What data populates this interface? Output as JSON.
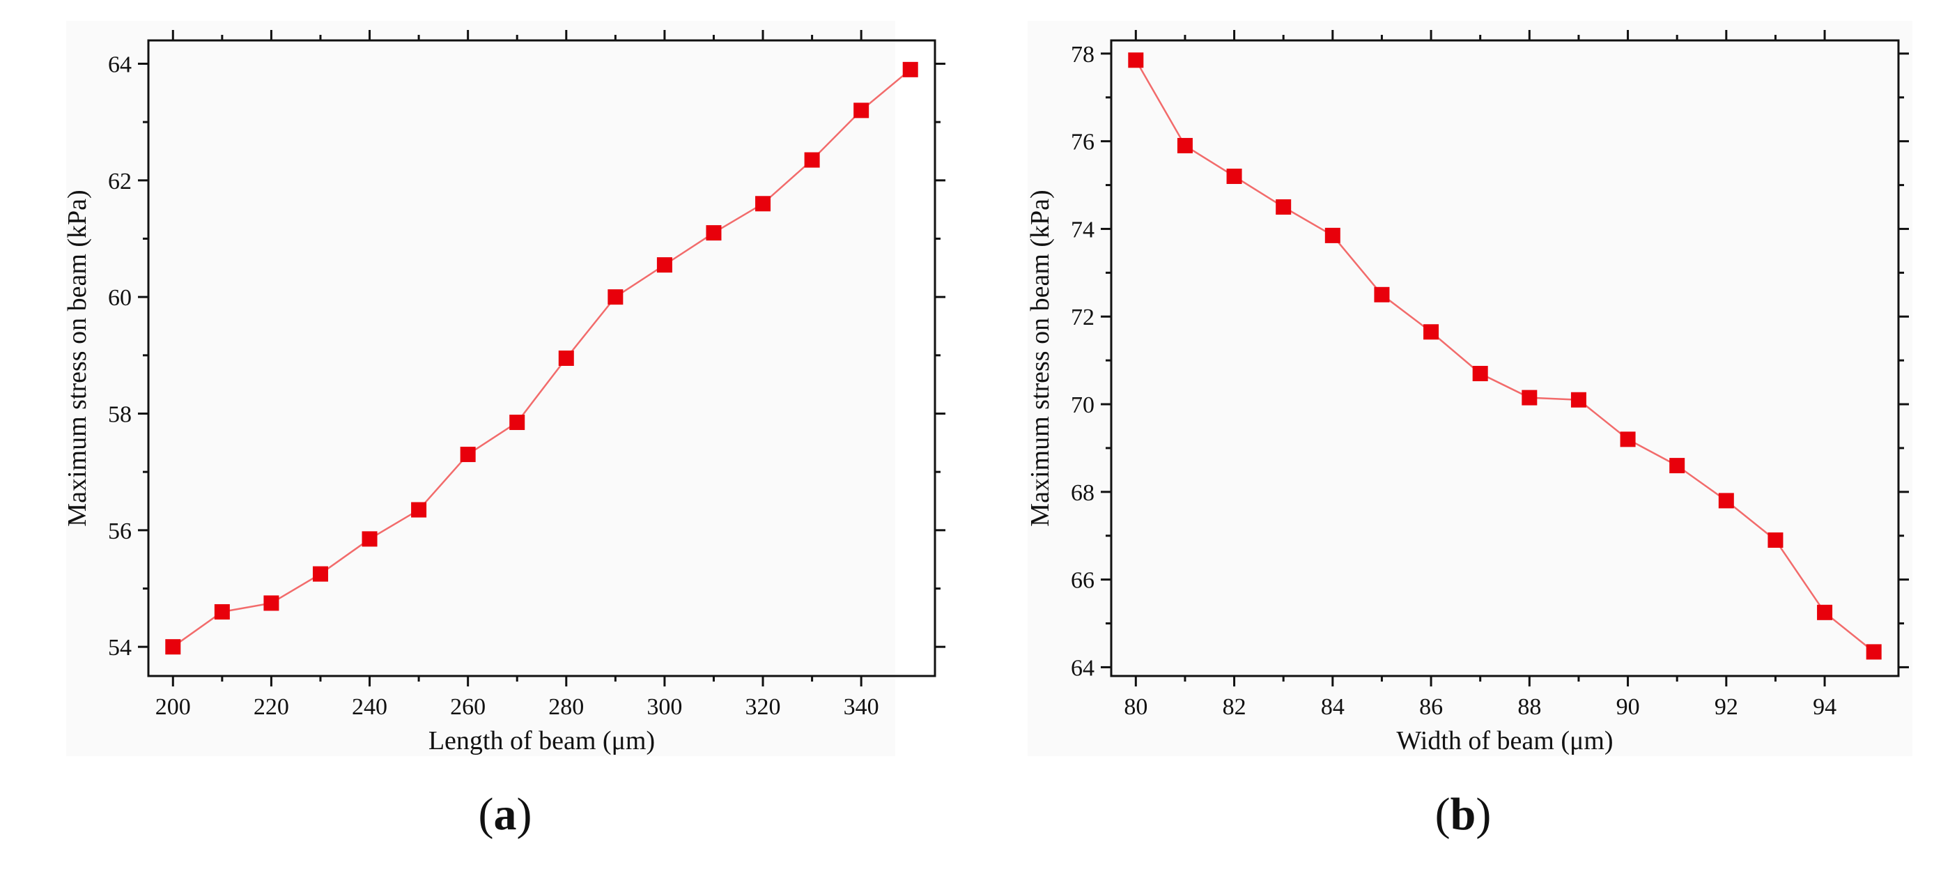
{
  "figure": {
    "series_color": "#e8000b",
    "line_color": "#f26b6b"
  },
  "chart_data": [
    {
      "type": "line",
      "panel_label": "a",
      "xlabel": "Length of beam (μm)",
      "ylabel": "Maximum stress on beam (kPa)",
      "xlim": [
        195,
        355
      ],
      "ylim": [
        53.5,
        64.4
      ],
      "xticks": [
        200,
        220,
        240,
        260,
        280,
        300,
        320,
        340
      ],
      "yticks": [
        54,
        56,
        58,
        60,
        62,
        64
      ],
      "grid": false,
      "marker": "square",
      "x": [
        200,
        210,
        220,
        230,
        240,
        250,
        260,
        270,
        280,
        290,
        300,
        310,
        320,
        330,
        340,
        350
      ],
      "y": [
        54.0,
        54.6,
        54.75,
        55.25,
        55.85,
        56.35,
        57.3,
        57.85,
        58.95,
        60.0,
        60.55,
        61.1,
        61.6,
        62.35,
        63.2,
        63.9
      ]
    },
    {
      "type": "line",
      "panel_label": "b",
      "xlabel": "Width of beam (μm)",
      "ylabel": "Maximum stress on beam (kPa)",
      "xlim": [
        79.5,
        95.5
      ],
      "ylim": [
        63.8,
        78.3
      ],
      "xticks": [
        80,
        82,
        84,
        86,
        88,
        90,
        92,
        94
      ],
      "yticks": [
        64,
        66,
        68,
        70,
        72,
        74,
        76,
        78
      ],
      "grid": false,
      "marker": "square",
      "x": [
        80,
        81,
        82,
        83,
        84,
        85,
        86,
        87,
        88,
        89,
        90,
        91,
        92,
        93,
        94,
        95
      ],
      "y": [
        77.85,
        75.9,
        75.2,
        74.5,
        73.85,
        72.5,
        71.65,
        70.7,
        70.15,
        70.1,
        69.2,
        68.6,
        67.8,
        66.9,
        65.25,
        64.35
      ]
    }
  ]
}
